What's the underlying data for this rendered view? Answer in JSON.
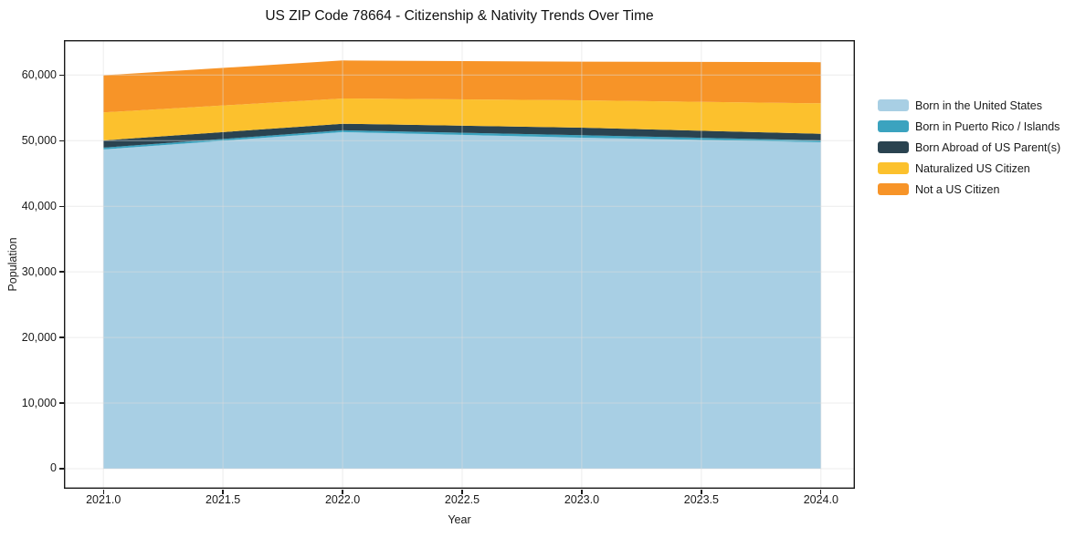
{
  "figure": {
    "background": "#ffffff",
    "axis_color": "#1a1a1a",
    "grid_color": "#dddddd"
  },
  "chart_data": {
    "type": "area",
    "stacked": true,
    "title": "US ZIP Code 78664 - Citizenship & Nativity Trends Over Time",
    "xlabel": "Year",
    "ylabel": "Population",
    "x": [
      2021,
      2022,
      2023,
      2024
    ],
    "series": [
      {
        "name": "Born in the United States",
        "color": "#a8cfe4",
        "values": [
          48650,
          51300,
          50450,
          49750
        ]
      },
      {
        "name": "Born in Puerto Rico / Islands",
        "color": "#3ba3bf",
        "values": [
          280,
          280,
          380,
          280
        ]
      },
      {
        "name": "Born Abroad of US Parent(s)",
        "color": "#2a4350",
        "values": [
          1100,
          1000,
          1150,
          1020
        ]
      },
      {
        "name": "Naturalized US Citizen",
        "color": "#fcc12d",
        "values": [
          4270,
          3850,
          4170,
          4640
        ]
      },
      {
        "name": "Not a US Citizen",
        "color": "#f79428",
        "values": [
          5660,
          5790,
          5890,
          6260
        ]
      }
    ],
    "totals": [
      59960,
      62220,
      62040,
      61950
    ],
    "xlim": [
      2020.835,
      2024.142
    ],
    "ylim": [
      -3060,
      65320
    ],
    "x_ticks": [
      {
        "value": 2021.0,
        "label": "2021.0"
      },
      {
        "value": 2021.5,
        "label": "2021.5"
      },
      {
        "value": 2022.0,
        "label": "2022.0"
      },
      {
        "value": 2022.5,
        "label": "2022.5"
      },
      {
        "value": 2023.0,
        "label": "2023.0"
      },
      {
        "value": 2023.5,
        "label": "2023.5"
      },
      {
        "value": 2024.0,
        "label": "2024.0"
      }
    ],
    "y_ticks": [
      {
        "value": 0,
        "label": "0"
      },
      {
        "value": 10000,
        "label": "10,000"
      },
      {
        "value": 20000,
        "label": "20,000"
      },
      {
        "value": 30000,
        "label": "30,000"
      },
      {
        "value": 40000,
        "label": "40,000"
      },
      {
        "value": 50000,
        "label": "50,000"
      },
      {
        "value": 60000,
        "label": "60,000"
      }
    ],
    "grid": true,
    "legend_position": "outside-right"
  }
}
